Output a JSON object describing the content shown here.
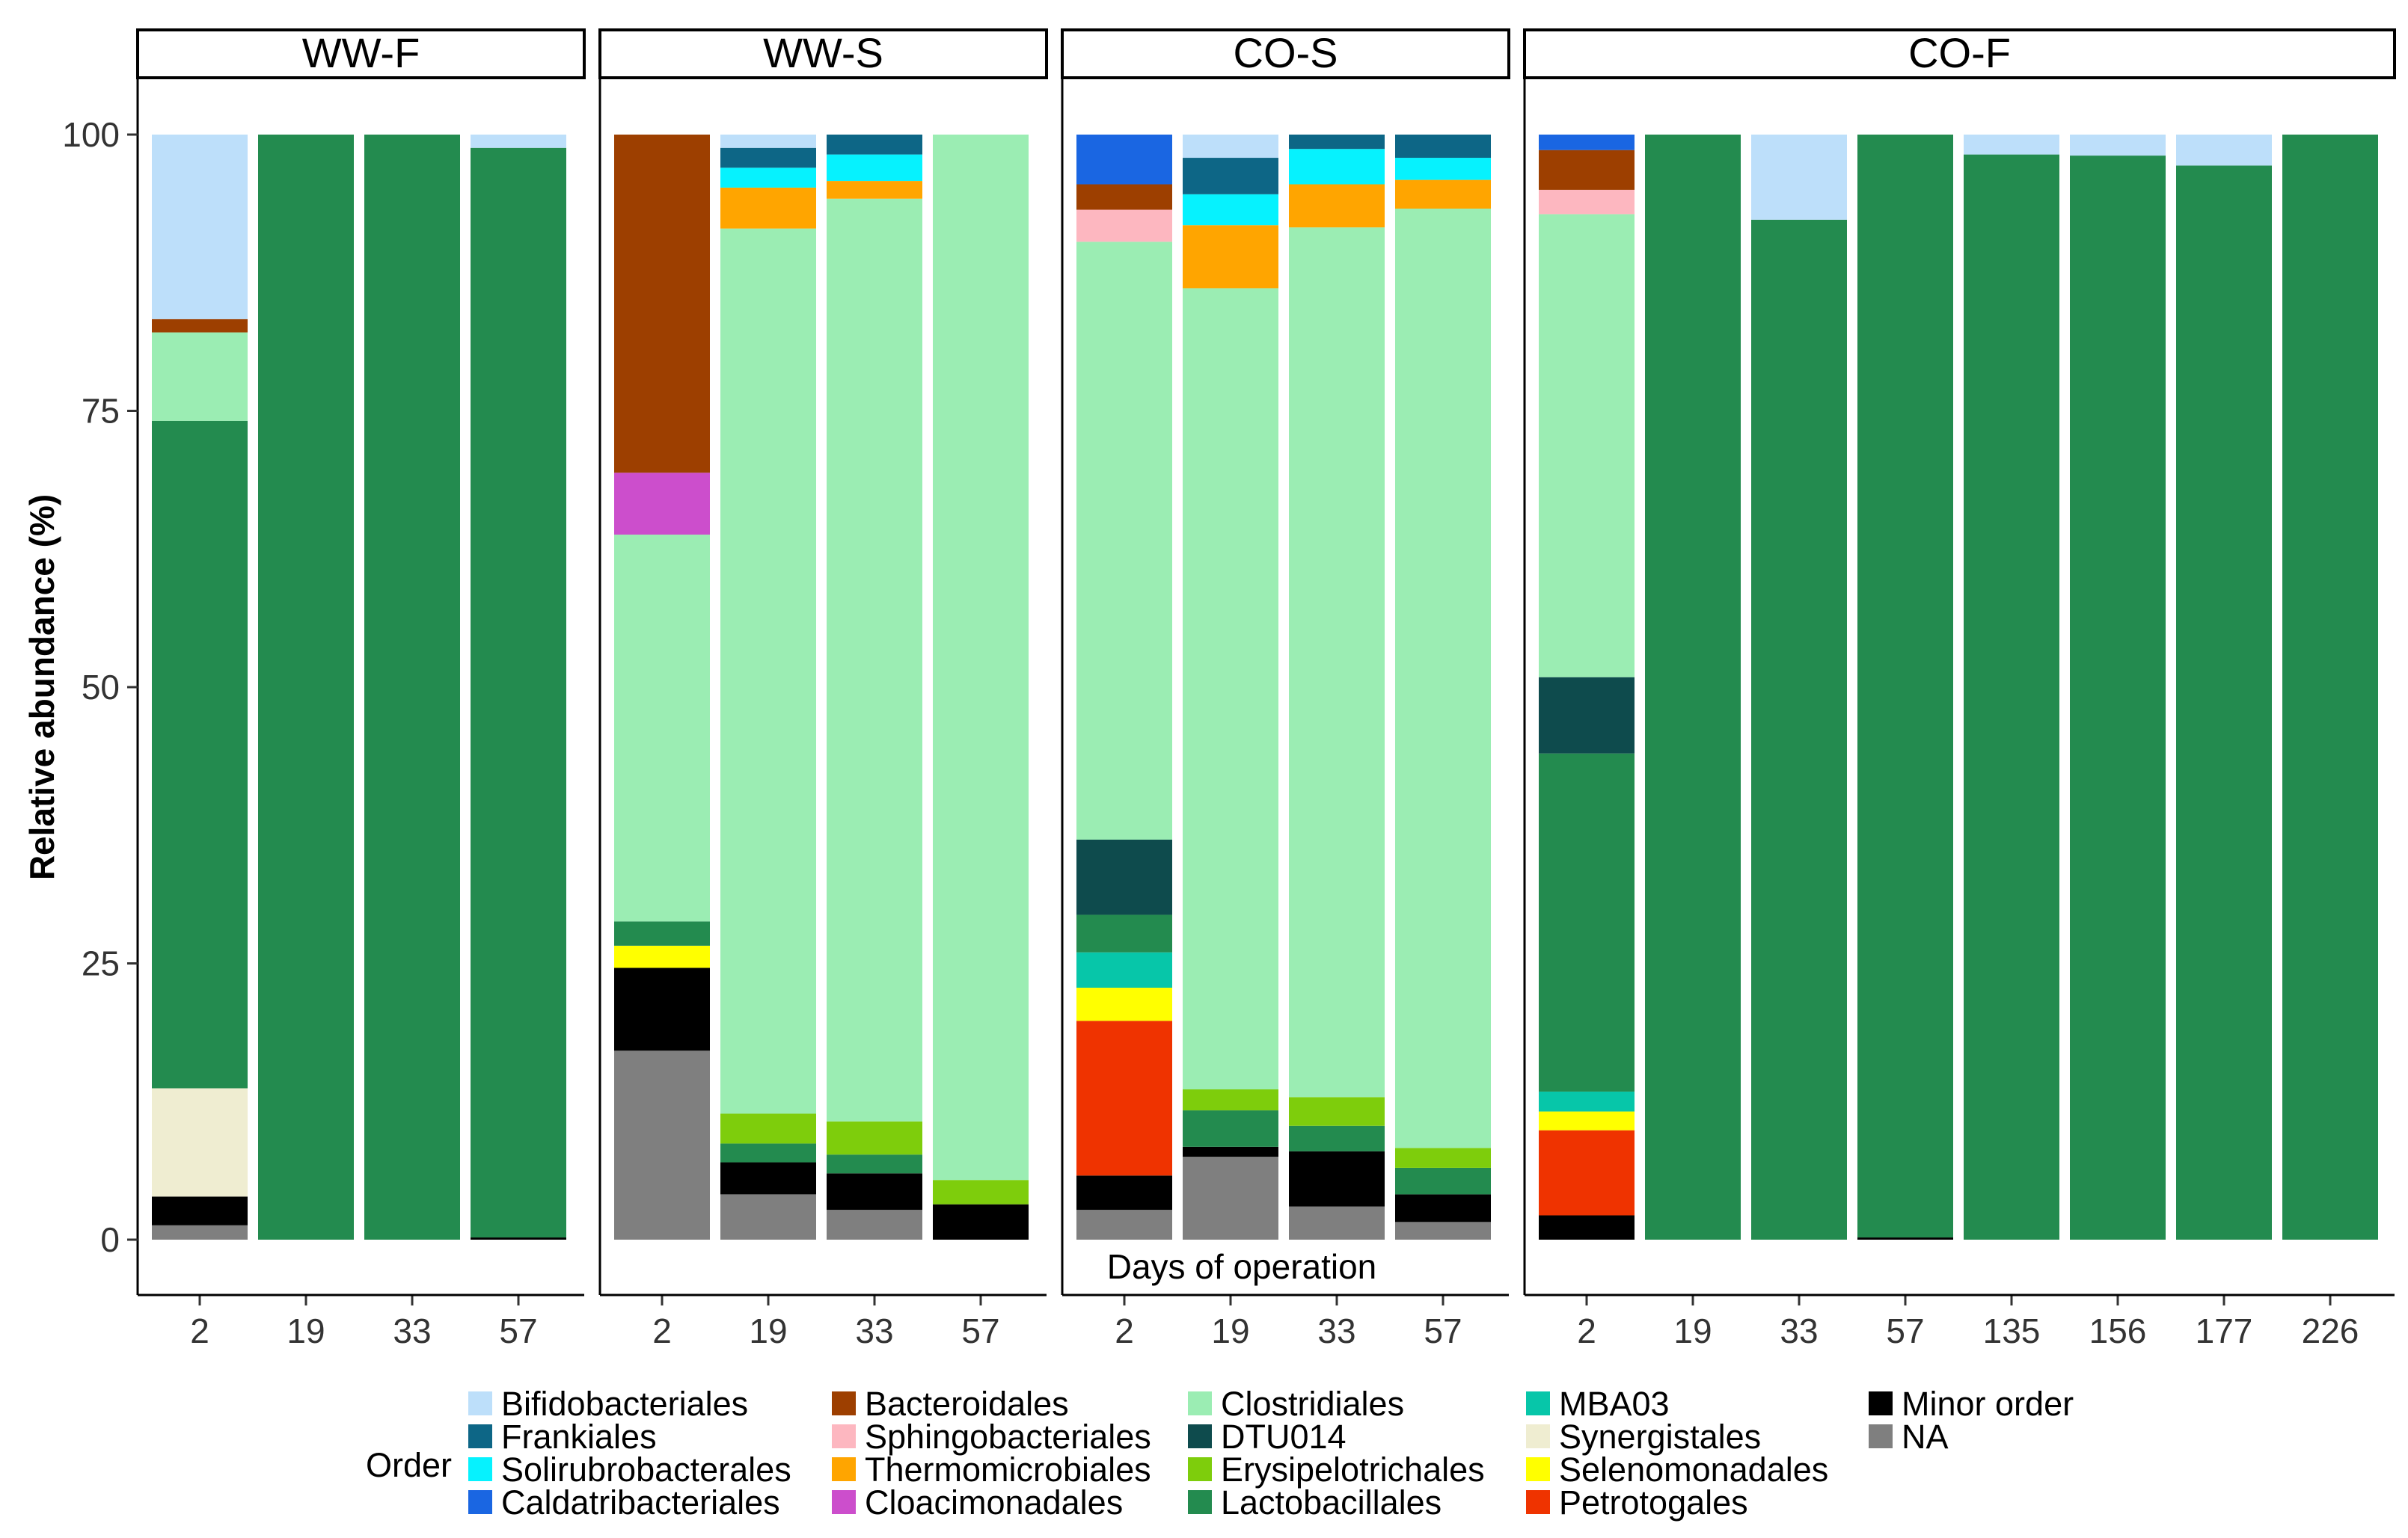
{
  "chart_data": {
    "type": "bar",
    "stacked": true,
    "ylabel": "Relative abundance (%)",
    "xlabel": "Days of operation",
    "ylim": [
      0,
      100
    ],
    "yticks": [
      0,
      25,
      50,
      75,
      100
    ],
    "legend_title": "Order",
    "legend_position": "bottom",
    "grid": false,
    "orders": [
      {
        "name": "Bifidobacteriales",
        "color": "#BDDFFA"
      },
      {
        "name": "Frankiales",
        "color": "#0D6686"
      },
      {
        "name": "Solirubrobacterales",
        "color": "#06F2FE"
      },
      {
        "name": "Caldatribacteriales",
        "color": "#1A66E2"
      },
      {
        "name": "Bacteroidales",
        "color": "#9D3F00"
      },
      {
        "name": "Sphingobacteriales",
        "color": "#FDB7C0"
      },
      {
        "name": "Thermomicrobiales",
        "color": "#FFA500"
      },
      {
        "name": "Cloacimonadales",
        "color": "#CC4ECC"
      },
      {
        "name": "Clostridiales",
        "color": "#9BEDB3"
      },
      {
        "name": "DTU014",
        "color": "#0E4B4D"
      },
      {
        "name": "Erysipelotrichales",
        "color": "#7ECD0C"
      },
      {
        "name": "Lactobacillales",
        "color": "#238B4F"
      },
      {
        "name": "MBA03",
        "color": "#07C6A9"
      },
      {
        "name": "Synergistales",
        "color": "#EFEDD1"
      },
      {
        "name": "Selenomonadales",
        "color": "#FFFF00"
      },
      {
        "name": "Petrotogales",
        "color": "#EF3300"
      },
      {
        "name": "Minor order",
        "color": "#000000"
      },
      {
        "name": "NA",
        "color": "#7F7F7F"
      }
    ],
    "panels": [
      {
        "name": "WW-F",
        "bars": [
          {
            "day": "2",
            "segments": [
              {
                "order": "NA",
                "value": 1.3
              },
              {
                "order": "Minor order",
                "value": 2.6
              },
              {
                "order": "Synergistales",
                "value": 9.8
              },
              {
                "order": "Lactobacillales",
                "value": 60.4
              },
              {
                "order": "Clostridiales",
                "value": 8.0
              },
              {
                "order": "Bacteroidales",
                "value": 1.2
              },
              {
                "order": "Bifidobacteriales",
                "value": 16.7
              }
            ]
          },
          {
            "day": "19",
            "segments": [
              {
                "order": "Lactobacillales",
                "value": 100
              }
            ]
          },
          {
            "day": "33",
            "segments": [
              {
                "order": "Lactobacillales",
                "value": 100
              }
            ]
          },
          {
            "day": "57",
            "segments": [
              {
                "order": "Minor order",
                "value": 0.2
              },
              {
                "order": "Lactobacillales",
                "value": 98.6
              },
              {
                "order": "Bifidobacteriales",
                "value": 1.2
              }
            ]
          }
        ]
      },
      {
        "name": "WW-S",
        "bars": [
          {
            "day": "2",
            "segments": [
              {
                "order": "NA",
                "value": 17.1
              },
              {
                "order": "Minor order",
                "value": 7.5
              },
              {
                "order": "Selenomonadales",
                "value": 2.0
              },
              {
                "order": "Lactobacillales",
                "value": 2.2
              },
              {
                "order": "Clostridiales",
                "value": 35.0
              },
              {
                "order": "Cloacimonadales",
                "value": 5.6
              },
              {
                "order": "Bacteroidales",
                "value": 30.6
              }
            ]
          },
          {
            "day": "19",
            "segments": [
              {
                "order": "NA",
                "value": 4.1
              },
              {
                "order": "Minor order",
                "value": 2.9
              },
              {
                "order": "Lactobacillales",
                "value": 1.7
              },
              {
                "order": "Erysipelotrichales",
                "value": 2.7
              },
              {
                "order": "Clostridiales",
                "value": 80.1
              },
              {
                "order": "Thermomicrobiales",
                "value": 3.7
              },
              {
                "order": "Solirubrobacterales",
                "value": 1.8
              },
              {
                "order": "Frankiales",
                "value": 1.8
              },
              {
                "order": "Bifidobacteriales",
                "value": 1.2
              }
            ]
          },
          {
            "day": "33",
            "segments": [
              {
                "order": "NA",
                "value": 2.7
              },
              {
                "order": "Minor order",
                "value": 3.3
              },
              {
                "order": "Lactobacillales",
                "value": 1.7
              },
              {
                "order": "Erysipelotrichales",
                "value": 3.0
              },
              {
                "order": "Clostridiales",
                "value": 83.5
              },
              {
                "order": "Thermomicrobiales",
                "value": 1.6
              },
              {
                "order": "Solirubrobacterales",
                "value": 2.4
              },
              {
                "order": "Frankiales",
                "value": 1.8
              }
            ]
          },
          {
            "day": "57",
            "segments": [
              {
                "order": "Minor order",
                "value": 3.2
              },
              {
                "order": "Erysipelotrichales",
                "value": 2.2
              },
              {
                "order": "Clostridiales",
                "value": 94.6
              }
            ]
          }
        ]
      },
      {
        "name": "CO-S",
        "bars": [
          {
            "day": "2",
            "segments": [
              {
                "order": "NA",
                "value": 2.7
              },
              {
                "order": "Minor order",
                "value": 3.1
              },
              {
                "order": "Petrotogales",
                "value": 14.0
              },
              {
                "order": "Selenomonadales",
                "value": 3.0
              },
              {
                "order": "MBA03",
                "value": 3.2
              },
              {
                "order": "Lactobacillales",
                "value": 3.4
              },
              {
                "order": "DTU014",
                "value": 6.8
              },
              {
                "order": "Clostridiales",
                "value": 54.1
              },
              {
                "order": "Sphingobacteriales",
                "value": 2.9
              },
              {
                "order": "Bacteroidales",
                "value": 2.3
              },
              {
                "order": "Caldatribacteriales",
                "value": 4.5
              }
            ]
          },
          {
            "day": "19",
            "segments": [
              {
                "order": "NA",
                "value": 7.5
              },
              {
                "order": "Minor order",
                "value": 0.9
              },
              {
                "order": "Lactobacillales",
                "value": 3.3
              },
              {
                "order": "Erysipelotrichales",
                "value": 1.9
              },
              {
                "order": "Clostridiales",
                "value": 72.5
              },
              {
                "order": "Thermomicrobiales",
                "value": 5.7
              },
              {
                "order": "Solirubrobacterales",
                "value": 2.8
              },
              {
                "order": "Frankiales",
                "value": 3.3
              },
              {
                "order": "Bifidobacteriales",
                "value": 2.1
              }
            ]
          },
          {
            "day": "33",
            "segments": [
              {
                "order": "NA",
                "value": 3.0
              },
              {
                "order": "Minor order",
                "value": 5.0
              },
              {
                "order": "Lactobacillales",
                "value": 2.3
              },
              {
                "order": "Erysipelotrichales",
                "value": 2.6
              },
              {
                "order": "Clostridiales",
                "value": 78.7
              },
              {
                "order": "Thermomicrobiales",
                "value": 3.9
              },
              {
                "order": "Solirubrobacterales",
                "value": 3.2
              },
              {
                "order": "Frankiales",
                "value": 1.3
              }
            ]
          },
          {
            "day": "57",
            "segments": [
              {
                "order": "NA",
                "value": 1.6
              },
              {
                "order": "Minor order",
                "value": 2.5
              },
              {
                "order": "Lactobacillales",
                "value": 2.4
              },
              {
                "order": "Erysipelotrichales",
                "value": 1.8
              },
              {
                "order": "Clostridiales",
                "value": 85.0
              },
              {
                "order": "Thermomicrobiales",
                "value": 2.6
              },
              {
                "order": "Solirubrobacterales",
                "value": 2.0
              },
              {
                "order": "Frankiales",
                "value": 2.1
              }
            ]
          }
        ]
      },
      {
        "name": "CO-F",
        "bars": [
          {
            "day": "2",
            "segments": [
              {
                "order": "Minor order",
                "value": 2.2
              },
              {
                "order": "Petrotogales",
                "value": 7.7
              },
              {
                "order": "Selenomonadales",
                "value": 1.7
              },
              {
                "order": "MBA03",
                "value": 1.8
              },
              {
                "order": "Lactobacillales",
                "value": 30.6
              },
              {
                "order": "DTU014",
                "value": 6.9
              },
              {
                "order": "Clostridiales",
                "value": 41.9
              },
              {
                "order": "Sphingobacteriales",
                "value": 2.2
              },
              {
                "order": "Bacteroidales",
                "value": 3.6
              },
              {
                "order": "Caldatribacteriales",
                "value": 1.4
              }
            ]
          },
          {
            "day": "19",
            "segments": [
              {
                "order": "Lactobacillales",
                "value": 100
              }
            ]
          },
          {
            "day": "33",
            "segments": [
              {
                "order": "Lactobacillales",
                "value": 92.3
              },
              {
                "order": "Bifidobacteriales",
                "value": 7.7
              }
            ]
          },
          {
            "day": "57",
            "segments": [
              {
                "order": "Minor order",
                "value": 0.2
              },
              {
                "order": "Lactobacillales",
                "value": 99.8
              }
            ]
          },
          {
            "day": "135",
            "segments": [
              {
                "order": "Lactobacillales",
                "value": 98.2
              },
              {
                "order": "Bifidobacteriales",
                "value": 1.8
              }
            ]
          },
          {
            "day": "156",
            "segments": [
              {
                "order": "Lactobacillales",
                "value": 98.1
              },
              {
                "order": "Bifidobacteriales",
                "value": 1.9
              }
            ]
          },
          {
            "day": "177",
            "segments": [
              {
                "order": "Lactobacillales",
                "value": 97.2
              },
              {
                "order": "Bifidobacteriales",
                "value": 2.8
              }
            ]
          },
          {
            "day": "226",
            "segments": [
              {
                "order": "Lactobacillales",
                "value": 100
              }
            ]
          }
        ]
      }
    ]
  }
}
